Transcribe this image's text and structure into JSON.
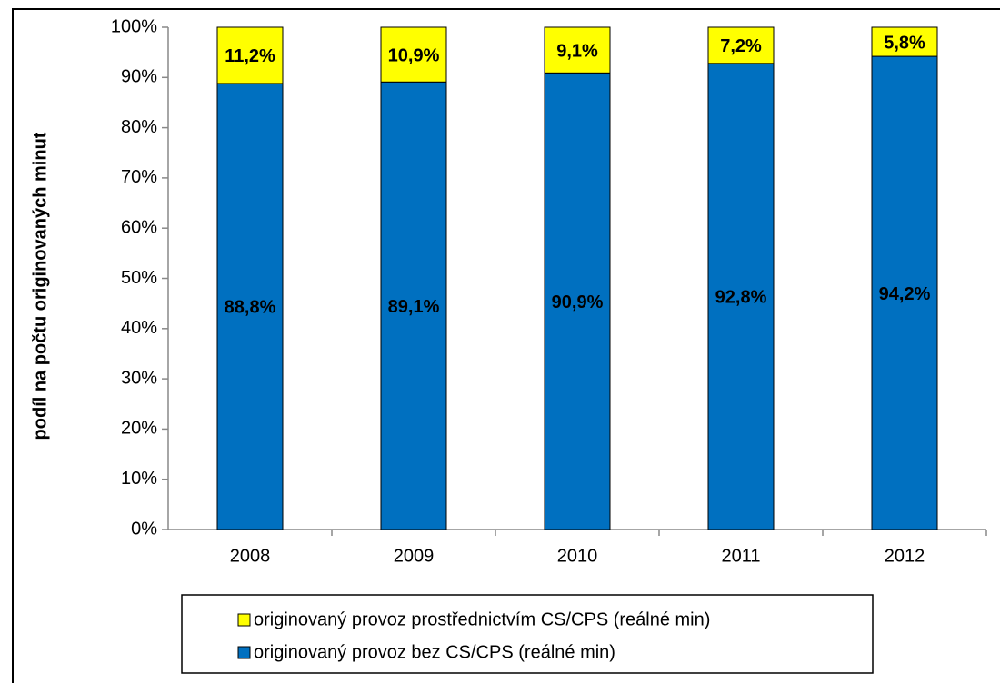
{
  "chart_data": {
    "type": "stacked_bar",
    "y_label": "podíl na počtu originovaných minut",
    "categories": [
      "2008",
      "2009",
      "2010",
      "2011",
      "2012"
    ],
    "series": [
      {
        "name": "originovaný provoz bez CS/CPS (reálné min)",
        "color": "#0070c0",
        "values": [
          88.8,
          89.1,
          90.9,
          92.8,
          94.2
        ],
        "value_labels": [
          "88,8%",
          "89,1%",
          "90,9%",
          "92,8%",
          "94,2%"
        ]
      },
      {
        "name": "originovaný provoz prostřednictvím CS/CPS (reálné min)",
        "color": "#ffff00",
        "values": [
          11.2,
          10.9,
          9.1,
          7.2,
          5.8
        ],
        "value_labels": [
          "11,2%",
          "10,9%",
          "9,1%",
          "7,2%",
          "5,8%"
        ]
      }
    ],
    "ylim": [
      0,
      100
    ],
    "yticks": [
      {
        "value": 0,
        "label": "0%"
      },
      {
        "value": 10,
        "label": "10%"
      },
      {
        "value": 20,
        "label": "20%"
      },
      {
        "value": 30,
        "label": "30%"
      },
      {
        "value": 40,
        "label": "40%"
      },
      {
        "value": 50,
        "label": "50%"
      },
      {
        "value": 60,
        "label": "60%"
      },
      {
        "value": 70,
        "label": "70%"
      },
      {
        "value": 80,
        "label": "80%"
      },
      {
        "value": 90,
        "label": "90%"
      },
      {
        "value": 100,
        "label": "100%"
      }
    ]
  }
}
